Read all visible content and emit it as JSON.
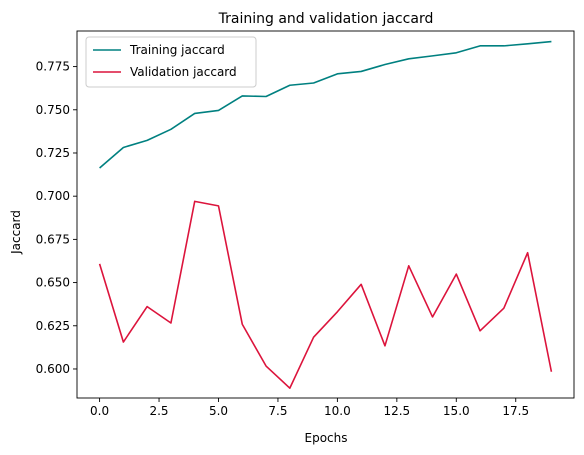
{
  "chart_data": {
    "type": "line",
    "title": "Training and validation jaccard",
    "xlabel": "Epochs",
    "ylabel": "Jaccard",
    "x": [
      0,
      1,
      2,
      3,
      4,
      5,
      6,
      7,
      8,
      9,
      10,
      11,
      12,
      13,
      14,
      15,
      16,
      17,
      18,
      19
    ],
    "xlim": [
      -0.95,
      19.95
    ],
    "ylim": [
      0.5832,
      0.7956
    ],
    "xticks": [
      0.0,
      2.5,
      5.0,
      7.5,
      10.0,
      12.5,
      15.0,
      17.5
    ],
    "xtick_labels": [
      "0.0",
      "2.5",
      "5.0",
      "7.5",
      "10.0",
      "12.5",
      "15.0",
      "17.5"
    ],
    "yticks": [
      0.6,
      0.625,
      0.65,
      0.675,
      0.7,
      0.725,
      0.75,
      0.775
    ],
    "ytick_labels": [
      "0.600",
      "0.625",
      "0.650",
      "0.675",
      "0.700",
      "0.725",
      "0.750",
      "0.775"
    ],
    "grid": false,
    "legend_position": "upper-left",
    "series": [
      {
        "name": "Training jaccard",
        "color": "#008080",
        "values": [
          0.7163,
          0.7282,
          0.7323,
          0.7387,
          0.7479,
          0.7496,
          0.758,
          0.7577,
          0.7642,
          0.7655,
          0.7708,
          0.7722,
          0.7762,
          0.7795,
          0.7812,
          0.783,
          0.787,
          0.787,
          0.7882,
          0.7895
        ]
      },
      {
        "name": "Validation jaccard",
        "color": "#dc143c",
        "values": [
          0.6608,
          0.6156,
          0.6361,
          0.6266,
          0.697,
          0.6944,
          0.6259,
          0.6017,
          0.5889,
          0.6184,
          0.6331,
          0.649,
          0.6134,
          0.6597,
          0.6301,
          0.6549,
          0.6221,
          0.6352,
          0.6673,
          0.5984
        ]
      }
    ]
  }
}
